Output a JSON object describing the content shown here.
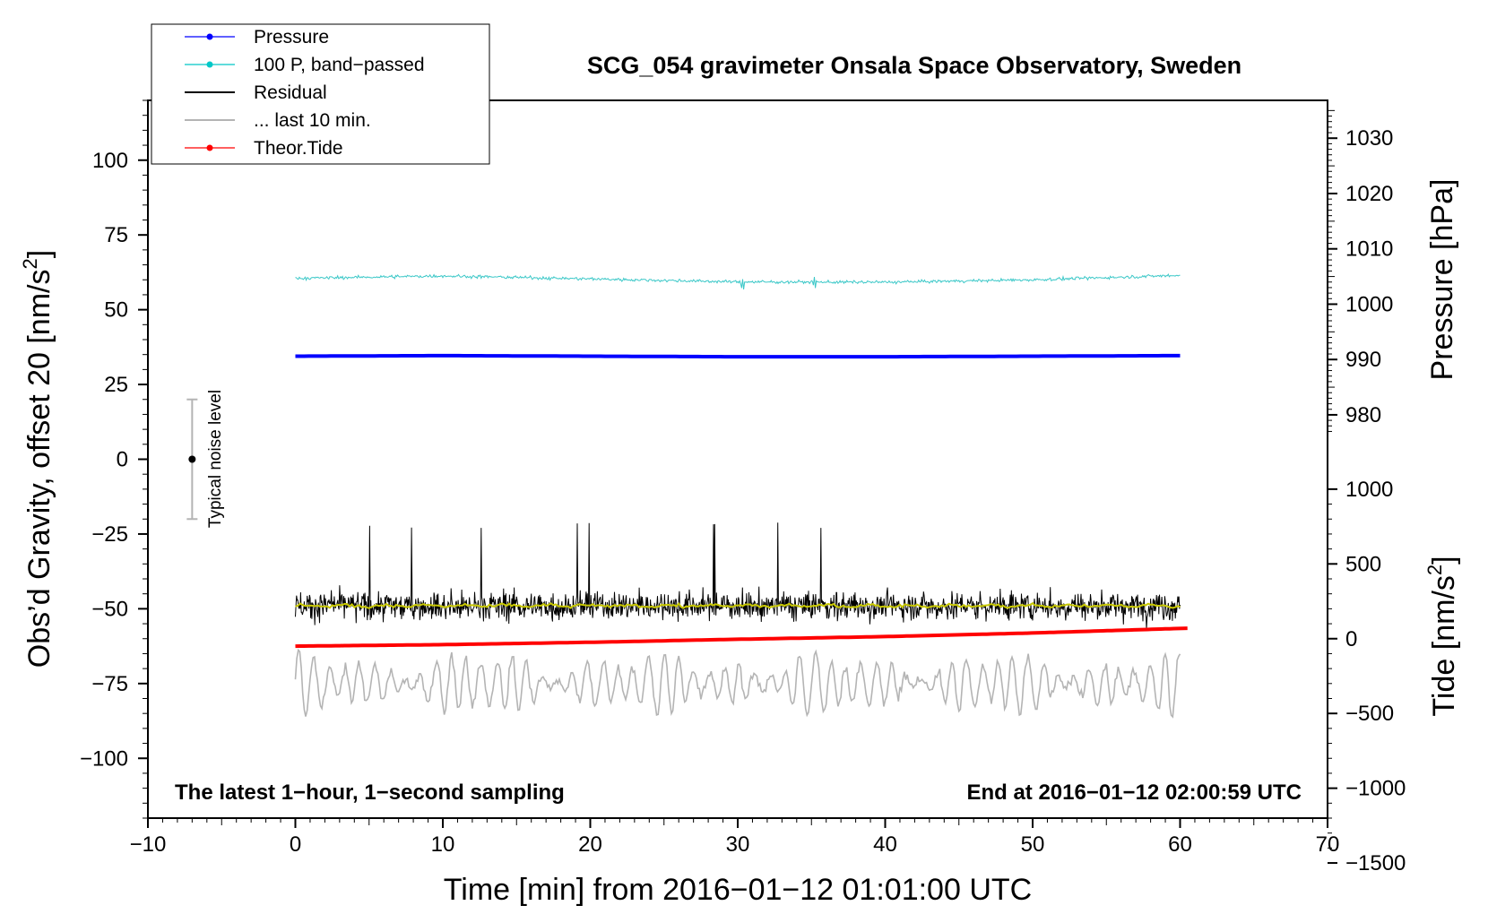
{
  "chart_data": {
    "type": "line",
    "title": "SCG_054 gravimeter Onsala Space Observatory, Sweden",
    "xlabel": "Time [min] from 2016−01−12 01:01:00 UTC",
    "ylabel": "Obs’d Gravity, offset 20 [nm/s",
    "ylabel_sup": "2",
    "ylabel_end": "]",
    "y2label": "Pressure [hPa]",
    "y3label": "Tide [nm/s",
    "y3label_sup": "2",
    "y3label_end": "]",
    "xlim": [
      -10,
      70
    ],
    "ylim": [
      -120,
      120
    ],
    "xticks": [
      -10,
      0,
      10,
      20,
      30,
      40,
      50,
      60,
      70
    ],
    "xtick_labels": [
      "−10",
      "0",
      "10",
      "20",
      "30",
      "40",
      "50",
      "60",
      "70"
    ],
    "yticks": [
      -100,
      -75,
      -50,
      -25,
      0,
      25,
      50,
      75,
      100
    ],
    "ytick_labels": [
      "−100",
      "−75",
      "−50",
      "−25",
      "0",
      "25",
      "50",
      "75",
      "100"
    ],
    "pressure_axis": {
      "ticks": [
        980,
        990,
        1000,
        1010,
        1020,
        1030
      ],
      "tick_labels": [
        "980",
        "990",
        "1000",
        "1010",
        "1020",
        "1030"
      ],
      "gravity_at_1000hPa": 51.85,
      "gravity_per_hPa": 1.85
    },
    "tide_axis": {
      "ticks": [
        -1500,
        -1000,
        -500,
        0,
        500,
        1000
      ],
      "tick_labels": [
        "−1500",
        "−1000",
        "−500",
        "0",
        "500",
        "1000"
      ],
      "gravity_at_0": -60,
      "gravity_per_unit": 0.05
    },
    "legend": [
      {
        "name": "Pressure",
        "color": "#0000ff",
        "marker": true
      },
      {
        "name": "100 P, band−passed",
        "color": "#00c8c8",
        "marker": true
      },
      {
        "name": "Residual",
        "color": "#000000",
        "marker": false
      },
      {
        "name": "... last 10 min.",
        "color": "#b4b4b4",
        "marker": false
      },
      {
        "name": "Theor.Tide",
        "color": "#ff0000",
        "marker": true
      }
    ],
    "series": [
      {
        "name": "Pressure",
        "color": "#0000ff",
        "x": [
          0,
          10,
          20,
          30,
          40,
          50,
          60
        ],
        "y_hPa": [
          990.6,
          990.7,
          990.6,
          990.5,
          990.5,
          990.6,
          990.7
        ]
      },
      {
        "name": "100 P, band−passed",
        "color": "#3cc8c8",
        "x": [
          0,
          10,
          20,
          30,
          40,
          50,
          60
        ],
        "y": [
          60.5,
          61.3,
          60.3,
          59.3,
          59.2,
          60.0,
          61.5
        ]
      },
      {
        "name": "Residual",
        "color": "#000000",
        "x": [
          0,
          60
        ],
        "y_mean": -49,
        "y_range": [
          -60,
          -23
        ]
      },
      {
        "name": "Residual smoothed",
        "color": "#c8c800",
        "x": [
          0,
          60
        ],
        "y": [
          -49,
          -49
        ]
      },
      {
        "name": "... last 10 min.",
        "color": "#b4b4b4",
        "x": [
          0,
          60
        ],
        "y_mean": -75,
        "y_range": [
          -90,
          -60
        ]
      },
      {
        "name": "Theor.Tide",
        "color": "#ff0000",
        "x": [
          0,
          10,
          20,
          30,
          40,
          50,
          60.5
        ],
        "y": [
          -62.5,
          -62.0,
          -61.2,
          -60.2,
          -59.3,
          -58.1,
          -56.5
        ]
      }
    ],
    "noise_level": {
      "label": "Typical noise level",
      "x": -7,
      "center": 0,
      "range": [
        -20,
        20
      ]
    },
    "annotation_left": "The latest 1−hour, 1−second sampling",
    "annotation_right": "End at 2016−01−12 02:00:59 UTC"
  }
}
